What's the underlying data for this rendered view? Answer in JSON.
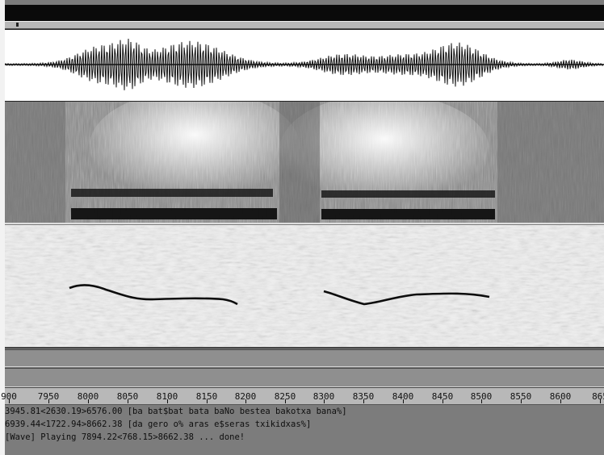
{
  "window": {
    "title": ""
  },
  "ruler": {
    "ticks": [
      "900",
      "7950",
      "8000",
      "8050",
      "8100",
      "8150",
      "8200",
      "8250",
      "8300",
      "8350",
      "8400",
      "8450",
      "8500",
      "8550",
      "8600",
      "865"
    ]
  },
  "console": {
    "lines": [
      "3945.81<2630.19>6576.00 [ba bat$bat bata baNo bestea bakotxa bana%]",
      "6939.44<1722.94>8662.38 [da gero o% aras e$seras txikidxas%]",
      "[Wave] Playing 7894.22<768.15>8662.38 ... done!"
    ]
  },
  "colors": {
    "waveform": "#111111",
    "spectrogram_dark": "#151515",
    "pitch_track": "#0d0d0d"
  }
}
